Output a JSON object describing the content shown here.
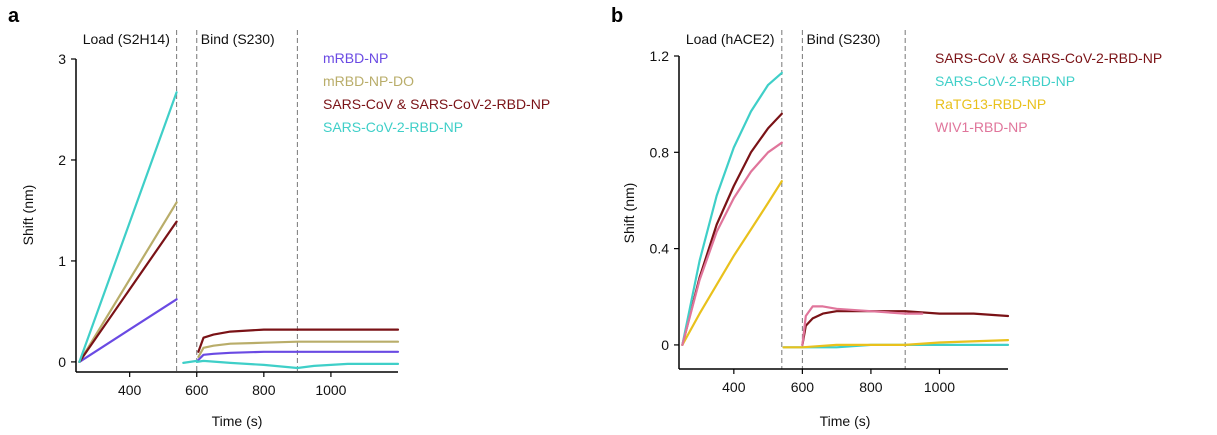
{
  "chart_data": [
    {
      "type": "line",
      "panel_label": "a",
      "xlabel": "Time (s)",
      "ylabel": "Shift (nm)",
      "xlim": [
        240,
        1200
      ],
      "ylim": [
        -0.1,
        3
      ],
      "xticks": [
        400,
        600,
        800,
        1000
      ],
      "yticks": [
        0,
        1,
        2,
        3
      ],
      "phases": [
        {
          "label": "Load (S2H14)",
          "x": 260
        },
        {
          "label": "Bind (S230)",
          "x": 612
        }
      ],
      "dividers": [
        540,
        600,
        900
      ],
      "legend_position": "top-right",
      "series": [
        {
          "name": "mRBD-NP",
          "color": "#6a4ae3",
          "load": [
            [
              250,
              0.0
            ],
            [
              540,
              0.62
            ]
          ],
          "bind": [
            [
              605,
              0.02
            ],
            [
              620,
              0.07
            ],
            [
              650,
              0.08
            ],
            [
              700,
              0.09
            ],
            [
              800,
              0.1
            ],
            [
              900,
              0.1
            ],
            [
              1200,
              0.1
            ]
          ]
        },
        {
          "name": "mRBD-NP-DO",
          "color": "#b9ad6a",
          "load": [
            [
              250,
              0.0
            ],
            [
              540,
              1.58
            ]
          ],
          "bind": [
            [
              605,
              0.05
            ],
            [
              620,
              0.14
            ],
            [
              650,
              0.16
            ],
            [
              700,
              0.18
            ],
            [
              800,
              0.19
            ],
            [
              900,
              0.2
            ],
            [
              1200,
              0.2
            ]
          ]
        },
        {
          "name": "SARS-CoV & SARS-CoV-2-RBD-NP",
          "color": "#7a1216",
          "load": [
            [
              250,
              0.0
            ],
            [
              540,
              1.39
            ]
          ],
          "bind": [
            [
              605,
              0.1
            ],
            [
              620,
              0.24
            ],
            [
              650,
              0.27
            ],
            [
              700,
              0.3
            ],
            [
              800,
              0.32
            ],
            [
              900,
              0.32
            ],
            [
              1200,
              0.32
            ]
          ]
        },
        {
          "name": "SARS-CoV-2-RBD-NP",
          "color": "#3fcfc8",
          "load": [
            [
              250,
              0.0
            ],
            [
              540,
              2.67
            ]
          ],
          "bind": [
            [
              600,
              0.0
            ],
            [
              620,
              0.01
            ],
            [
              700,
              -0.01
            ],
            [
              800,
              -0.03
            ],
            [
              900,
              -0.06
            ],
            [
              950,
              -0.04
            ],
            [
              1050,
              -0.02
            ],
            [
              1200,
              -0.02
            ]
          ],
          "pre": [
            [
              560,
              -0.01
            ],
            [
              600,
              0.01
            ]
          ]
        }
      ]
    },
    {
      "type": "line",
      "panel_label": "b",
      "xlabel": "Time (s)",
      "ylabel": "Shift (nm)",
      "xlim": [
        240,
        1200
      ],
      "ylim": [
        -0.1,
        1.2
      ],
      "xticks": [
        400,
        600,
        800,
        1000
      ],
      "yticks": [
        0,
        0.4,
        0.8,
        1.2
      ],
      "phases": [
        {
          "label": "Load (hACE2)",
          "x": 260
        },
        {
          "label": "Bind (S230)",
          "x": 612
        }
      ],
      "dividers": [
        540,
        600,
        900
      ],
      "legend_position": "top-right",
      "series": [
        {
          "name": "SARS-CoV & SARS-CoV-2-RBD-NP",
          "color": "#7a1216",
          "load": [
            [
              250,
              0.0
            ],
            [
              300,
              0.28
            ],
            [
              350,
              0.5
            ],
            [
              400,
              0.66
            ],
            [
              450,
              0.8
            ],
            [
              500,
              0.9
            ],
            [
              540,
              0.96
            ]
          ],
          "bind": [
            [
              600,
              0.0
            ],
            [
              610,
              0.08
            ],
            [
              630,
              0.11
            ],
            [
              660,
              0.13
            ],
            [
              700,
              0.14
            ],
            [
              800,
              0.14
            ],
            [
              900,
              0.14
            ],
            [
              1000,
              0.13
            ],
            [
              1100,
              0.13
            ],
            [
              1200,
              0.12
            ]
          ]
        },
        {
          "name": "SARS-CoV-2-RBD-NP",
          "color": "#3fcfc8",
          "load": [
            [
              250,
              0.0
            ],
            [
              300,
              0.35
            ],
            [
              350,
              0.62
            ],
            [
              400,
              0.82
            ],
            [
              450,
              0.97
            ],
            [
              500,
              1.08
            ],
            [
              540,
              1.13
            ]
          ],
          "bind": [
            [
              545,
              -0.01
            ],
            [
              600,
              -0.01
            ],
            [
              700,
              -0.01
            ],
            [
              800,
              0.0
            ],
            [
              900,
              0.0
            ],
            [
              1000,
              0.0
            ],
            [
              1200,
              0.0
            ]
          ]
        },
        {
          "name": "RaTG13-RBD-NP",
          "color": "#e9c11c",
          "load": [
            [
              250,
              0.0
            ],
            [
              300,
              0.13
            ],
            [
              350,
              0.25
            ],
            [
              400,
              0.37
            ],
            [
              450,
              0.48
            ],
            [
              500,
              0.59
            ],
            [
              540,
              0.68
            ]
          ],
          "bind": [
            [
              545,
              -0.01
            ],
            [
              600,
              -0.01
            ],
            [
              700,
              0.0
            ],
            [
              800,
              0.0
            ],
            [
              900,
              0.0
            ],
            [
              1000,
              0.01
            ],
            [
              1200,
              0.02
            ]
          ]
        },
        {
          "name": "WIV1-RBD-NP",
          "color": "#e0759b",
          "load": [
            [
              250,
              0.0
            ],
            [
              300,
              0.27
            ],
            [
              350,
              0.47
            ],
            [
              400,
              0.61
            ],
            [
              450,
              0.72
            ],
            [
              500,
              0.8
            ],
            [
              540,
              0.84
            ]
          ],
          "bind": [
            [
              600,
              0.0
            ],
            [
              610,
              0.12
            ],
            [
              630,
              0.16
            ],
            [
              660,
              0.16
            ],
            [
              700,
              0.15
            ],
            [
              800,
              0.14
            ],
            [
              900,
              0.13
            ],
            [
              950,
              0.13
            ]
          ]
        }
      ]
    }
  ]
}
